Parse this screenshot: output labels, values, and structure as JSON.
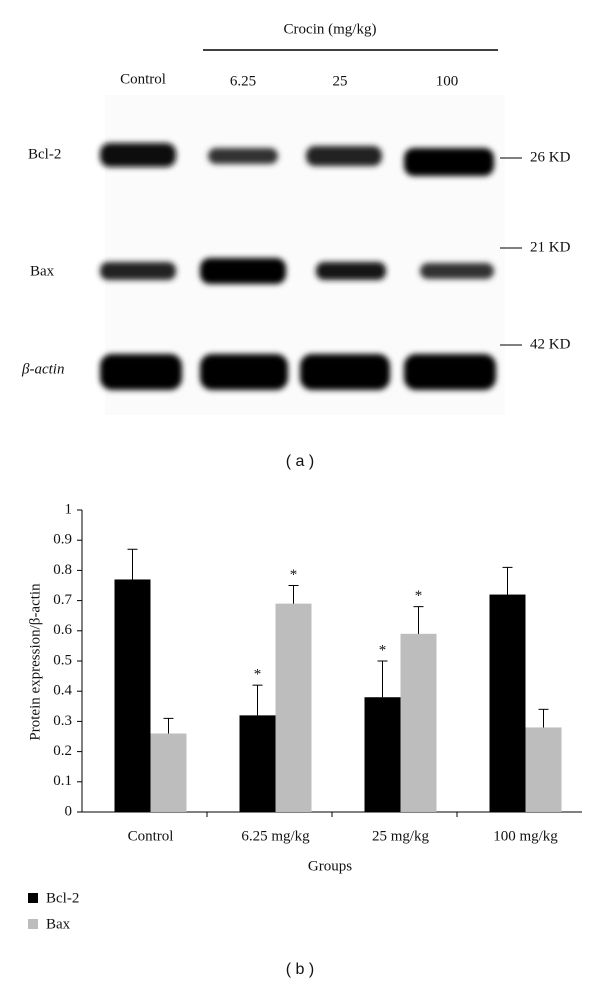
{
  "blot": {
    "treatment": "Crocin (mg/kg)",
    "lanes": [
      "Control",
      "6.25",
      "25",
      "100"
    ],
    "rows": [
      "Bcl-2",
      "Bax",
      "β-actin"
    ],
    "sizes": [
      "26 KD",
      "21 KD",
      "42 KD"
    ]
  },
  "panel_labels": [
    "( a )",
    "( b )"
  ],
  "chart_data": {
    "type": "bar",
    "x_label": "Groups",
    "y_label": "Protein expression/β-actin",
    "categories": [
      "Control",
      "6.25 mg/kg",
      "25 mg/kg",
      "100 mg/kg"
    ],
    "series": [
      {
        "name": "Bcl-2",
        "color": "#000000",
        "values": [
          0.77,
          0.32,
          0.38,
          0.72
        ],
        "errors": [
          0.1,
          0.1,
          0.12,
          0.09
        ],
        "annotations": [
          null,
          "*",
          "*",
          null
        ]
      },
      {
        "name": "Bax",
        "color": "#bdbdbd",
        "values": [
          0.26,
          0.69,
          0.59,
          0.28
        ],
        "errors": [
          0.05,
          0.06,
          0.09,
          0.06
        ],
        "annotations": [
          null,
          "*",
          "*",
          null
        ]
      }
    ],
    "ylim": [
      0,
      1
    ],
    "yticks": [
      0,
      0.1,
      0.2,
      0.3,
      0.4,
      0.5,
      0.6,
      0.7,
      0.8,
      0.9,
      1
    ],
    "legend": "bottom-left"
  }
}
